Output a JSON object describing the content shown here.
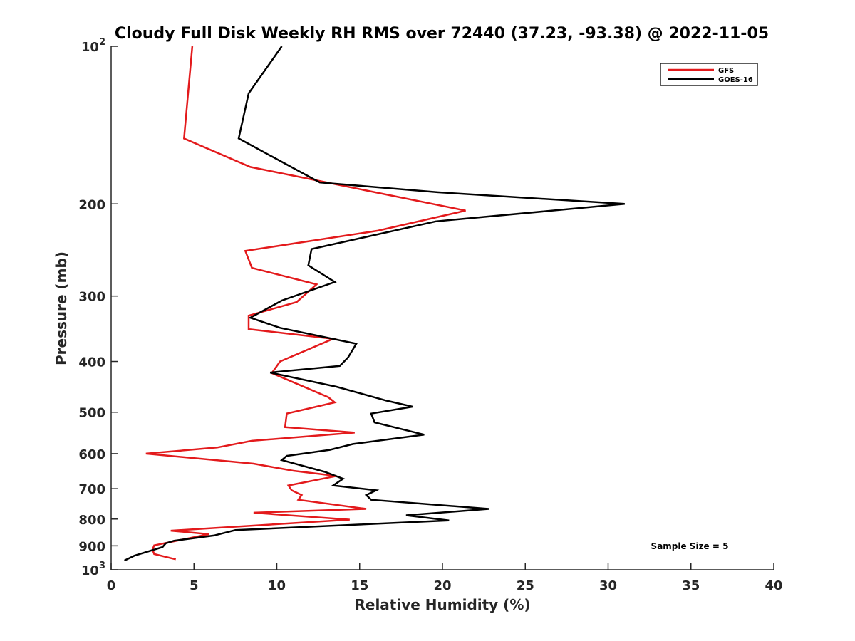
{
  "chart_data": {
    "type": "line",
    "title": "Cloudy Full Disk Weekly RH RMS over 72440 (37.23, -93.38) @ 2022-11-05",
    "xlabel": "Relative Humidity (%)",
    "ylabel": "Pressure (mb)",
    "xlim": [
      0,
      40
    ],
    "ylim": [
      100,
      1000
    ],
    "yscale": "log",
    "y_reversed": true,
    "grid": false,
    "legend_position": "top-right",
    "x_ticks": [
      "0",
      "5",
      "10",
      "15",
      "20",
      "25",
      "30",
      "35",
      "40"
    ],
    "y_ticks": [
      {
        "value": 100,
        "base": "10",
        "exp": "2"
      },
      {
        "value": 200,
        "label": "200"
      },
      {
        "value": 300,
        "label": "300"
      },
      {
        "value": 400,
        "label": "400"
      },
      {
        "value": 500,
        "label": "500"
      },
      {
        "value": 600,
        "label": "600"
      },
      {
        "value": 700,
        "label": "700"
      },
      {
        "value": 800,
        "label": "800"
      },
      {
        "value": 900,
        "label": "900"
      },
      {
        "value": 1000,
        "base": "10",
        "exp": "3"
      }
    ],
    "annotation": "Sample Size = 5",
    "series": [
      {
        "name": "GFS",
        "color": "#e31a1c",
        "points": [
          [
            4.9,
            100
          ],
          [
            4.4,
            150
          ],
          [
            8.4,
            170
          ],
          [
            21.4,
            206
          ],
          [
            16.1,
            225
          ],
          [
            8.1,
            246
          ],
          [
            8.5,
            265
          ],
          [
            12.4,
            285
          ],
          [
            11.2,
            308
          ],
          [
            8.3,
            327
          ],
          [
            8.3,
            347
          ],
          [
            13.4,
            362
          ],
          [
            10.2,
            400
          ],
          [
            9.7,
            421
          ],
          [
            13.1,
            468
          ],
          [
            13.5,
            479
          ],
          [
            10.6,
            503
          ],
          [
            10.5,
            534
          ],
          [
            14.7,
            547
          ],
          [
            8.5,
            567
          ],
          [
            6.4,
            584
          ],
          [
            2.1,
            600
          ],
          [
            8.6,
            627
          ],
          [
            11.0,
            647
          ],
          [
            13.6,
            662
          ],
          [
            10.7,
            690
          ],
          [
            10.9,
            705
          ],
          [
            11.5,
            720
          ],
          [
            11.3,
            735
          ],
          [
            15.4,
            765
          ],
          [
            8.6,
            778
          ],
          [
            14.4,
            802
          ],
          [
            3.6,
            842
          ],
          [
            5.9,
            855
          ],
          [
            2.6,
            898
          ],
          [
            2.5,
            915
          ],
          [
            2.6,
            933
          ],
          [
            3.9,
            955
          ]
        ]
      },
      {
        "name": "GOES-16",
        "color": "#000000",
        "points": [
          [
            10.3,
            100
          ],
          [
            8.3,
            123
          ],
          [
            7.7,
            150
          ],
          [
            12.6,
            182
          ],
          [
            19.7,
            190
          ],
          [
            31.0,
            200
          ],
          [
            19.6,
            216
          ],
          [
            12.1,
            244
          ],
          [
            11.9,
            262
          ],
          [
            13.5,
            282
          ],
          [
            10.3,
            306
          ],
          [
            8.4,
            330
          ],
          [
            10.2,
            345
          ],
          [
            14.8,
            370
          ],
          [
            14.3,
            393
          ],
          [
            13.8,
            408
          ],
          [
            9.6,
            420
          ],
          [
            13.6,
            447
          ],
          [
            16.6,
            475
          ],
          [
            18.2,
            488
          ],
          [
            15.7,
            503
          ],
          [
            15.9,
            523
          ],
          [
            18.9,
            552
          ],
          [
            14.6,
            575
          ],
          [
            13.2,
            590
          ],
          [
            10.6,
            606
          ],
          [
            10.3,
            617
          ],
          [
            12.9,
            650
          ],
          [
            14.0,
            670
          ],
          [
            13.4,
            690
          ],
          [
            16.0,
            705
          ],
          [
            15.4,
            720
          ],
          [
            15.7,
            735
          ],
          [
            22.8,
            765
          ],
          [
            17.8,
            787
          ],
          [
            20.4,
            805
          ],
          [
            7.5,
            840
          ],
          [
            6.2,
            860
          ],
          [
            3.8,
            880
          ],
          [
            3.3,
            890
          ],
          [
            3.1,
            905
          ],
          [
            1.4,
            940
          ],
          [
            0.8,
            960
          ]
        ]
      }
    ]
  }
}
